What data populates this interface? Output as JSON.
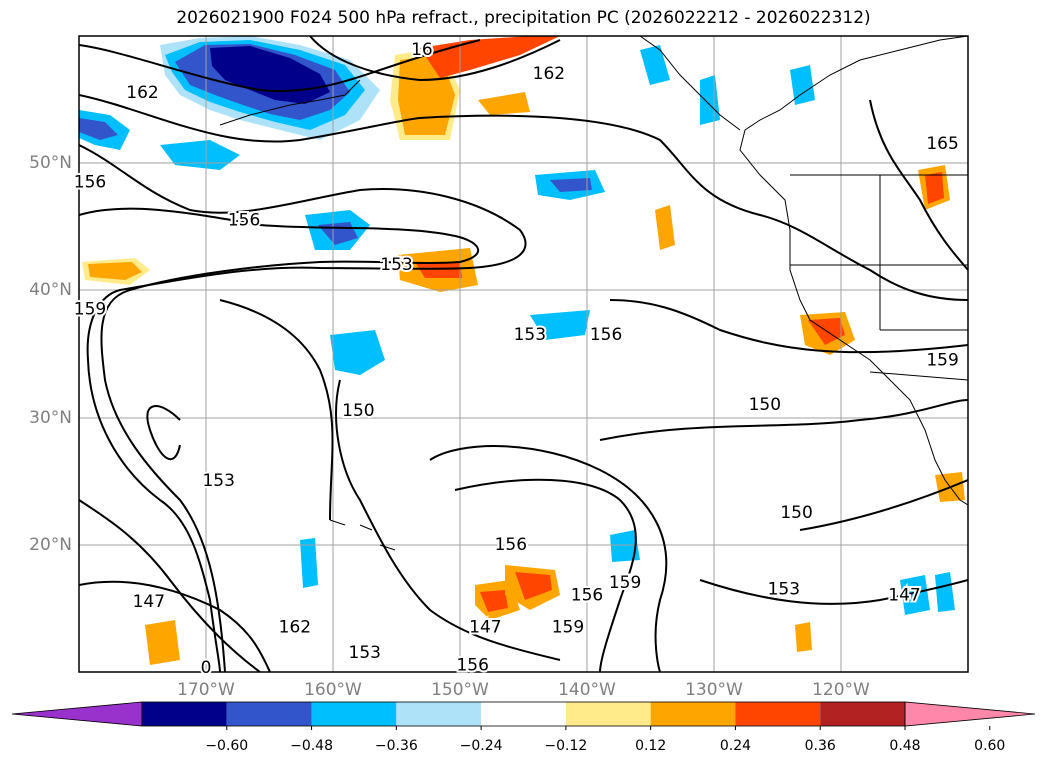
{
  "title": "2026021900 F024 500 hPa refract., precipitation PC (2026022212 - 2026022312)",
  "lat_labels": [
    {
      "label": "50°N",
      "lat": 50
    },
    {
      "label": "40°N",
      "lat": 40
    },
    {
      "label": "30°N",
      "lat": 30
    },
    {
      "label": "20°N",
      "lat": 20
    }
  ],
  "lon_labels": [
    {
      "label": "170°W",
      "lon": -170
    },
    {
      "label": "160°W",
      "lon": -160
    },
    {
      "label": "150°W",
      "lon": -150
    },
    {
      "label": "140°W",
      "lon": -140
    },
    {
      "label": "130°W",
      "lon": -130
    },
    {
      "label": "120°W",
      "lon": -120
    }
  ],
  "extent": {
    "lon_min": -180,
    "lon_max": -110,
    "lat_min": 10,
    "lat_max": 60
  },
  "contour_labels": [
    {
      "text": "162",
      "lon": -175,
      "lat": 55.5
    },
    {
      "text": "165",
      "lon": -112,
      "lat": 51.5
    },
    {
      "text": "156",
      "lon": -180,
      "lat": 48.5
    },
    {
      "text": "156",
      "lon": -167,
      "lat": 45.5
    },
    {
      "text": "153",
      "lon": -155,
      "lat": 42
    },
    {
      "text": "159",
      "lon": -180,
      "lat": 38.5
    },
    {
      "text": "153",
      "lon": -144.5,
      "lat": 36.5
    },
    {
      "text": "156",
      "lon": -138.5,
      "lat": 36.5
    },
    {
      "text": "159",
      "lon": -112,
      "lat": 34.5
    },
    {
      "text": "150",
      "lon": -158,
      "lat": 30.5
    },
    {
      "text": "150",
      "lon": -126,
      "lat": 31
    },
    {
      "text": "153",
      "lon": -169,
      "lat": 25
    },
    {
      "text": "156",
      "lon": -146,
      "lat": 20
    },
    {
      "text": "150",
      "lon": -123.5,
      "lat": 22.5
    },
    {
      "text": "147",
      "lon": -174.5,
      "lat": 15.5
    },
    {
      "text": "162",
      "lon": -163,
      "lat": 13.5
    },
    {
      "text": "153",
      "lon": -157.5,
      "lat": 11.5
    },
    {
      "text": "147",
      "lon": -148,
      "lat": 13.5
    },
    {
      "text": "156",
      "lon": -149,
      "lat": 10.5
    },
    {
      "text": "159",
      "lon": -141.5,
      "lat": 13.5
    },
    {
      "text": "156",
      "lon": -140,
      "lat": 16
    },
    {
      "text": "159",
      "lon": -137,
      "lat": 17
    },
    {
      "text": "153",
      "lon": -124.5,
      "lat": 16.5
    },
    {
      "text": "147",
      "lon": -115,
      "lat": 16
    }
  ],
  "contour_label_162_north": {
    "text": "162",
    "lon": -143,
    "lat": 57
  },
  "contour_label_16": {
    "text": "16",
    "lon": -153,
    "lat": 59
  },
  "contour_label_0": {
    "text": "0",
    "lon": -170,
    "lat": 10
  },
  "colorbar": {
    "colors": [
      "#9932cc",
      "#00008b",
      "#3355cc",
      "#00bfff",
      "#aee2f8",
      "#ffffff",
      "#ffeb8a",
      "#ffa500",
      "#ff4500",
      "#b22222",
      "#ff88aa"
    ],
    "ticks": [
      "−0.60",
      "−0.48",
      "−0.36",
      "−0.24",
      "−0.12",
      "0.12",
      "0.24",
      "0.36",
      "0.48",
      "0.60"
    ],
    "extend": "both"
  }
}
